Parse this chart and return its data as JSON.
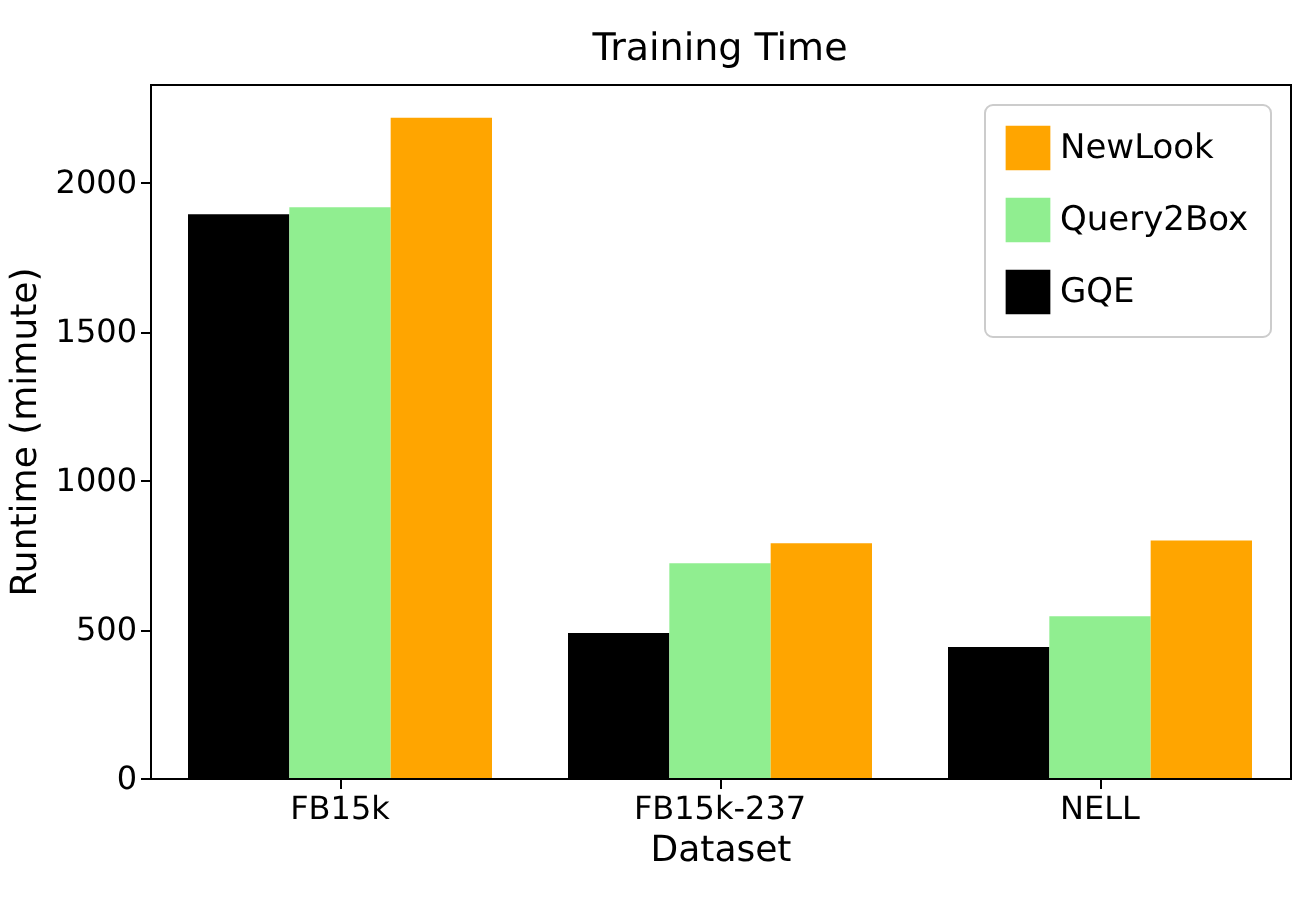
{
  "chart_data": {
    "type": "bar",
    "title": "Training Time",
    "xlabel": "Dataset",
    "ylabel": "Runtime (mimute)",
    "categories": [
      "FB15k",
      "FB15k-237",
      "NELL"
    ],
    "series": [
      {
        "name": "GQE",
        "color": "#000000",
        "values": [
          1893,
          487,
          440
        ]
      },
      {
        "name": "Query2Box",
        "color": "#90ee90",
        "values": [
          1916,
          721,
          543
        ]
      },
      {
        "name": "NewLook",
        "color": "#ffa500",
        "values": [
          2217,
          788,
          797
        ]
      }
    ],
    "ylim": [
      0,
      2330
    ],
    "yticks": [
      0,
      500,
      1000,
      1500,
      2000
    ],
    "grid": false,
    "legend": "top right"
  }
}
